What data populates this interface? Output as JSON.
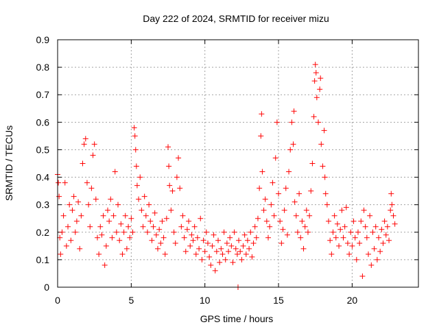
{
  "chart_data": {
    "type": "scatter",
    "title": "Day 222 of 2024, SRMTID for receiver mizu",
    "xlabel": "GPS time / hours",
    "ylabel": "SRMTID / TECUs",
    "xlim": [
      0,
      24.5
    ],
    "ylim": [
      0,
      0.9
    ],
    "xticks": [
      0,
      5,
      10,
      15,
      20
    ],
    "xtick_labels": [
      "0",
      "5",
      "10",
      "15",
      "20"
    ],
    "yticks": [
      0,
      0.1,
      0.2,
      0.3,
      0.4,
      0.5,
      0.6,
      0.7,
      0.8,
      0.9
    ],
    "ytick_labels": [
      "0",
      "0.1",
      "0.2",
      "0.3",
      "0.4",
      "0.5",
      "0.6",
      "0.7",
      "0.8",
      "0.9"
    ],
    "grid": true,
    "marker": "+",
    "color": "#ff0000",
    "series": [
      {
        "name": "SRMTID",
        "points": [
          [
            0.0,
            0.41
          ],
          [
            0.05,
            0.38
          ],
          [
            0.1,
            0.33
          ],
          [
            0.15,
            0.18
          ],
          [
            0.2,
            0.12
          ],
          [
            0.3,
            0.2
          ],
          [
            0.4,
            0.26
          ],
          [
            0.5,
            0.38
          ],
          [
            0.6,
            0.15
          ],
          [
            0.7,
            0.22
          ],
          [
            0.8,
            0.3
          ],
          [
            0.9,
            0.17
          ],
          [
            1.0,
            0.28
          ],
          [
            1.1,
            0.33
          ],
          [
            1.2,
            0.2
          ],
          [
            1.3,
            0.24
          ],
          [
            1.4,
            0.31
          ],
          [
            1.5,
            0.14
          ],
          [
            1.6,
            0.26
          ],
          [
            1.7,
            0.45
          ],
          [
            1.8,
            0.52
          ],
          [
            1.9,
            0.54
          ],
          [
            2.0,
            0.38
          ],
          [
            2.1,
            0.3
          ],
          [
            2.2,
            0.22
          ],
          [
            2.3,
            0.36
          ],
          [
            2.4,
            0.48
          ],
          [
            2.5,
            0.52
          ],
          [
            2.6,
            0.32
          ],
          [
            2.7,
            0.18
          ],
          [
            2.8,
            0.12
          ],
          [
            2.9,
            0.22
          ],
          [
            3.0,
            0.19
          ],
          [
            3.1,
            0.26
          ],
          [
            3.2,
            0.08
          ],
          [
            3.3,
            0.15
          ],
          [
            3.4,
            0.28
          ],
          [
            3.5,
            0.24
          ],
          [
            3.6,
            0.32
          ],
          [
            3.7,
            0.18
          ],
          [
            3.8,
            0.26
          ],
          [
            3.9,
            0.42
          ],
          [
            4.0,
            0.2
          ],
          [
            4.1,
            0.3
          ],
          [
            4.2,
            0.17
          ],
          [
            4.3,
            0.23
          ],
          [
            4.4,
            0.12
          ],
          [
            4.5,
            0.2
          ],
          [
            4.6,
            0.26
          ],
          [
            4.7,
            0.14
          ],
          [
            4.8,
            0.22
          ],
          [
            4.9,
            0.18
          ],
          [
            5.0,
            0.25
          ],
          [
            5.1,
            0.2
          ],
          [
            5.2,
            0.58
          ],
          [
            5.25,
            0.55
          ],
          [
            5.3,
            0.5
          ],
          [
            5.35,
            0.44
          ],
          [
            5.4,
            0.37
          ],
          [
            5.5,
            0.32
          ],
          [
            5.6,
            0.4
          ],
          [
            5.7,
            0.28
          ],
          [
            5.8,
            0.22
          ],
          [
            5.9,
            0.33
          ],
          [
            6.0,
            0.26
          ],
          [
            6.1,
            0.2
          ],
          [
            6.2,
            0.3
          ],
          [
            6.3,
            0.24
          ],
          [
            6.4,
            0.17
          ],
          [
            6.5,
            0.22
          ],
          [
            6.6,
            0.27
          ],
          [
            6.7,
            0.19
          ],
          [
            6.8,
            0.14
          ],
          [
            6.9,
            0.21
          ],
          [
            7.0,
            0.16
          ],
          [
            7.1,
            0.24
          ],
          [
            7.2,
            0.18
          ],
          [
            7.3,
            0.12
          ],
          [
            7.4,
            0.25
          ],
          [
            7.5,
            0.51
          ],
          [
            7.55,
            0.44
          ],
          [
            7.6,
            0.37
          ],
          [
            7.7,
            0.28
          ],
          [
            7.8,
            0.35
          ],
          [
            7.9,
            0.2
          ],
          [
            8.0,
            0.16
          ],
          [
            8.1,
            0.4
          ],
          [
            8.2,
            0.47
          ],
          [
            8.3,
            0.36
          ],
          [
            8.4,
            0.22
          ],
          [
            8.5,
            0.26
          ],
          [
            8.6,
            0.18
          ],
          [
            8.7,
            0.13
          ],
          [
            8.8,
            0.21
          ],
          [
            8.9,
            0.24
          ],
          [
            9.0,
            0.15
          ],
          [
            9.1,
            0.19
          ],
          [
            9.2,
            0.17
          ],
          [
            9.3,
            0.22
          ],
          [
            9.4,
            0.12
          ],
          [
            9.5,
            0.18
          ],
          [
            9.6,
            0.14
          ],
          [
            9.7,
            0.25
          ],
          [
            9.8,
            0.1
          ],
          [
            9.9,
            0.17
          ],
          [
            10.0,
            0.13
          ],
          [
            10.1,
            0.2
          ],
          [
            10.2,
            0.16
          ],
          [
            10.3,
            0.11
          ],
          [
            10.4,
            0.08
          ],
          [
            10.5,
            0.15
          ],
          [
            10.6,
            0.19
          ],
          [
            10.7,
            0.06
          ],
          [
            10.8,
            0.13
          ],
          [
            10.9,
            0.17
          ],
          [
            11.0,
            0.09
          ],
          [
            11.1,
            0.14
          ],
          [
            11.2,
            0.12
          ],
          [
            11.3,
            0.2
          ],
          [
            11.4,
            0.1
          ],
          [
            11.5,
            0.16
          ],
          [
            11.6,
            0.13
          ],
          [
            11.7,
            0.18
          ],
          [
            11.8,
            0.15
          ],
          [
            11.9,
            0.09
          ],
          [
            12.0,
            0.2
          ],
          [
            12.1,
            0.14
          ],
          [
            12.2,
            0.12
          ],
          [
            12.25,
            0.0
          ],
          [
            12.3,
            0.17
          ],
          [
            12.4,
            0.13
          ],
          [
            12.5,
            0.1
          ],
          [
            12.6,
            0.15
          ],
          [
            12.7,
            0.19
          ],
          [
            12.8,
            0.12
          ],
          [
            12.9,
            0.17
          ],
          [
            13.0,
            0.14
          ],
          [
            13.1,
            0.2
          ],
          [
            13.2,
            0.11
          ],
          [
            13.3,
            0.16
          ],
          [
            13.4,
            0.22
          ],
          [
            13.5,
            0.18
          ],
          [
            13.6,
            0.25
          ],
          [
            13.7,
            0.36
          ],
          [
            13.8,
            0.55
          ],
          [
            13.85,
            0.63
          ],
          [
            13.9,
            0.42
          ],
          [
            14.0,
            0.28
          ],
          [
            14.1,
            0.32
          ],
          [
            14.2,
            0.24
          ],
          [
            14.3,
            0.18
          ],
          [
            14.4,
            0.22
          ],
          [
            14.5,
            0.3
          ],
          [
            14.6,
            0.38
          ],
          [
            14.7,
            0.26
          ],
          [
            14.8,
            0.47
          ],
          [
            14.9,
            0.6
          ],
          [
            15.0,
            0.34
          ],
          [
            15.1,
            0.24
          ],
          [
            15.2,
            0.16
          ],
          [
            15.3,
            0.21
          ],
          [
            15.4,
            0.28
          ],
          [
            15.5,
            0.36
          ],
          [
            15.6,
            0.19
          ],
          [
            15.7,
            0.42
          ],
          [
            15.8,
            0.5
          ],
          [
            15.9,
            0.6
          ],
          [
            16.0,
            0.52
          ],
          [
            16.05,
            0.64
          ],
          [
            16.1,
            0.31
          ],
          [
            16.2,
            0.26
          ],
          [
            16.3,
            0.2
          ],
          [
            16.4,
            0.34
          ],
          [
            16.5,
            0.18
          ],
          [
            16.6,
            0.24
          ],
          [
            16.7,
            0.14
          ],
          [
            16.8,
            0.22
          ],
          [
            16.9,
            0.28
          ],
          [
            17.0,
            0.2
          ],
          [
            17.1,
            0.26
          ],
          [
            17.2,
            0.35
          ],
          [
            17.3,
            0.45
          ],
          [
            17.4,
            0.62
          ],
          [
            17.45,
            0.75
          ],
          [
            17.5,
            0.81
          ],
          [
            17.55,
            0.78
          ],
          [
            17.6,
            0.69
          ],
          [
            17.7,
            0.6
          ],
          [
            17.8,
            0.72
          ],
          [
            17.85,
            0.76
          ],
          [
            17.9,
            0.52
          ],
          [
            18.0,
            0.44
          ],
          [
            18.1,
            0.57
          ],
          [
            18.15,
            0.4
          ],
          [
            18.2,
            0.34
          ],
          [
            18.3,
            0.3
          ],
          [
            18.4,
            0.24
          ],
          [
            18.5,
            0.17
          ],
          [
            18.6,
            0.12
          ],
          [
            18.7,
            0.2
          ],
          [
            18.8,
            0.26
          ],
          [
            18.9,
            0.18
          ],
          [
            19.0,
            0.23
          ],
          [
            19.1,
            0.15
          ],
          [
            19.2,
            0.21
          ],
          [
            19.3,
            0.28
          ],
          [
            19.4,
            0.18
          ],
          [
            19.5,
            0.22
          ],
          [
            19.6,
            0.29
          ],
          [
            19.7,
            0.16
          ],
          [
            19.8,
            0.12
          ],
          [
            19.9,
            0.2
          ],
          [
            20.0,
            0.15
          ],
          [
            20.1,
            0.24
          ],
          [
            20.2,
            0.18
          ],
          [
            20.3,
            0.1
          ],
          [
            20.4,
            0.2
          ],
          [
            20.5,
            0.16
          ],
          [
            20.6,
            0.24
          ],
          [
            20.7,
            0.04
          ],
          [
            20.8,
            0.28
          ],
          [
            20.9,
            0.22
          ],
          [
            21.0,
            0.18
          ],
          [
            21.1,
            0.12
          ],
          [
            21.2,
            0.26
          ],
          [
            21.3,
            0.08
          ],
          [
            21.4,
            0.2
          ],
          [
            21.5,
            0.14
          ],
          [
            21.6,
            0.22
          ],
          [
            21.7,
            0.1
          ],
          [
            21.8,
            0.18
          ],
          [
            21.9,
            0.13
          ],
          [
            22.0,
            0.21
          ],
          [
            22.1,
            0.16
          ],
          [
            22.2,
            0.24
          ],
          [
            22.3,
            0.19
          ],
          [
            22.4,
            0.22
          ],
          [
            22.5,
            0.17
          ],
          [
            22.6,
            0.28
          ],
          [
            22.65,
            0.34
          ],
          [
            22.7,
            0.3
          ],
          [
            22.8,
            0.26
          ],
          [
            22.9,
            0.23
          ]
        ]
      }
    ]
  }
}
